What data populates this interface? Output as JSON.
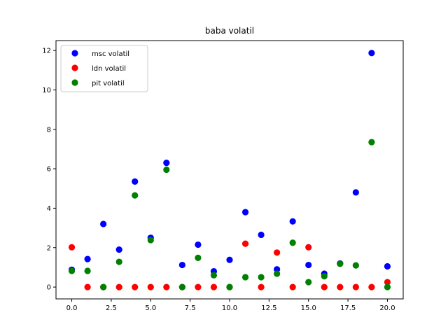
{
  "chart_data": {
    "type": "scatter",
    "title": "baba volatil",
    "xlabel": "",
    "ylabel": "",
    "xlim": [
      -1,
      21
    ],
    "ylim": [
      -0.6,
      12.5
    ],
    "x_ticks": [
      0.0,
      2.5,
      5.0,
      7.5,
      10.0,
      12.5,
      15.0,
      17.5,
      20.0
    ],
    "x_tick_labels": [
      "0.0",
      "2.5",
      "5.0",
      "7.5",
      "10.0",
      "12.5",
      "15.0",
      "17.5",
      "20.0"
    ],
    "y_ticks": [
      0,
      2,
      4,
      6,
      8,
      10,
      12
    ],
    "y_tick_labels": [
      "0",
      "2",
      "4",
      "6",
      "8",
      "10",
      "12"
    ],
    "grid": false,
    "legend_position": "top-left",
    "x": [
      0,
      1,
      2,
      3,
      4,
      5,
      6,
      7,
      8,
      9,
      10,
      11,
      12,
      13,
      14,
      15,
      16,
      17,
      18,
      19,
      20
    ],
    "series": [
      {
        "name": "msc volatil",
        "color": "#0000ff",
        "values": [
          0.88,
          1.42,
          3.2,
          1.9,
          5.35,
          2.5,
          6.3,
          1.12,
          2.15,
          0.8,
          1.38,
          3.8,
          2.65,
          0.9,
          3.33,
          1.12,
          0.68,
          1.2,
          4.8,
          11.87,
          1.05
        ]
      },
      {
        "name": "ldn volatil",
        "color": "#ff0000",
        "values": [
          2.02,
          0.0,
          0.0,
          0.0,
          0.0,
          0.0,
          0.0,
          0.0,
          0.0,
          0.0,
          0.0,
          2.2,
          0.0,
          1.75,
          0.0,
          2.02,
          0.0,
          0.0,
          0.0,
          0.0,
          0.25
        ]
      },
      {
        "name": "pit volatil",
        "color": "#008000",
        "values": [
          0.82,
          0.82,
          0.0,
          1.28,
          4.65,
          2.38,
          5.95,
          0.0,
          1.48,
          0.6,
          0.0,
          0.5,
          0.5,
          0.68,
          2.25,
          0.25,
          0.55,
          1.18,
          1.1,
          7.35,
          0.0
        ]
      }
    ]
  }
}
